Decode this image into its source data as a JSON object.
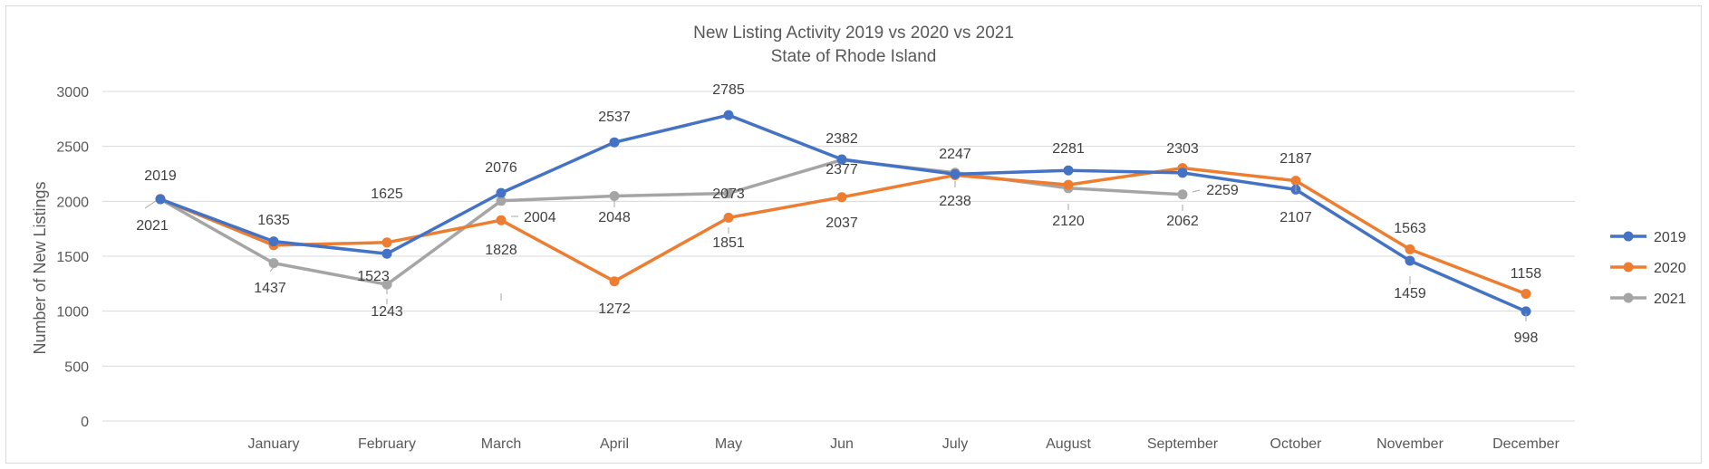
{
  "chart_data": {
    "type": "line",
    "title": "New Listing Activity 2019 vs 2020 vs 2021",
    "subtitle": "State of Rhode Island",
    "ylabel": "Number of New Listings",
    "xlabel": "",
    "ylim": [
      0,
      3000
    ],
    "yticks": [
      0,
      500,
      1000,
      1500,
      2000,
      2500,
      3000
    ],
    "categories": [
      "",
      "January",
      "February",
      "March",
      "April",
      "May",
      "Jun",
      "July",
      "August",
      "September",
      "October",
      "November",
      "December"
    ],
    "grid": true,
    "legend": "right",
    "series": [
      {
        "name": "2019",
        "color": "#4472c4",
        "values": [
          2019,
          1635,
          1523,
          2076,
          2537,
          2785,
          2382,
          2247,
          2281,
          2259,
          2107,
          1459,
          998
        ],
        "labels": [
          "2019",
          "1635",
          "1523",
          "2076",
          "2537",
          "2785",
          "2382",
          "2247",
          "2281",
          "2259",
          "2107",
          "1459",
          "998"
        ]
      },
      {
        "name": "2020",
        "color": "#ed7d31",
        "values": [
          2021,
          1600,
          1625,
          1828,
          1272,
          1851,
          2037,
          2238,
          2150,
          2303,
          2187,
          1563,
          1158
        ],
        "labels": [
          "2021",
          "",
          "1625",
          "1828",
          "1272",
          "1851",
          "2037",
          "2238",
          "",
          "2303",
          "2187",
          "1563",
          "1158"
        ]
      },
      {
        "name": "2021",
        "color": "#a5a5a5",
        "values": [
          2019,
          1437,
          1243,
          2004,
          2048,
          2073,
          2377,
          2260,
          2120,
          2062,
          null,
          null,
          null
        ],
        "labels": [
          "",
          "1437",
          "1243",
          "2004",
          "2048",
          "2073",
          "2377",
          "",
          "2120",
          "2062",
          "",
          "",
          ""
        ]
      }
    ]
  }
}
